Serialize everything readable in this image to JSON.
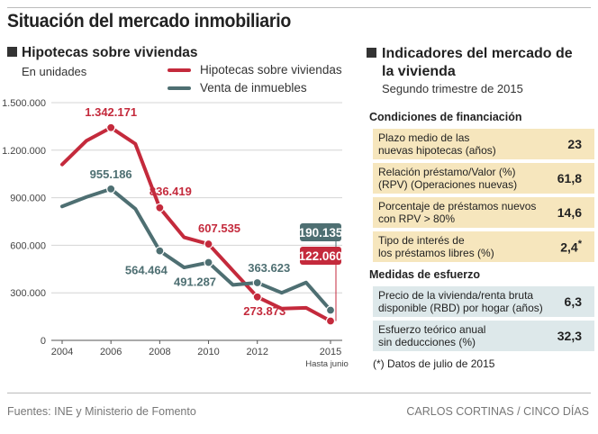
{
  "title": "Situación del mercado inmobiliario",
  "left_panel": {
    "heading": "Hipotecas sobre viviendas",
    "unit": "En unidades",
    "legend": [
      {
        "label": "Hipotecas sobre viviendas",
        "color": "#c42a3c"
      },
      {
        "label": "Venta de inmuebles",
        "color": "#4e6f72"
      }
    ]
  },
  "chart_data": {
    "type": "line",
    "x": [
      2004,
      2005,
      2006,
      2007,
      2008,
      2009,
      2010,
      2011,
      2012,
      2013,
      2014,
      2015
    ],
    "xticks": [
      "2004",
      "2006",
      "2008",
      "2010",
      "2012",
      "2015"
    ],
    "xtick_values": [
      2004,
      2006,
      2008,
      2010,
      2012,
      2015
    ],
    "xtick_sub": "Hasta junio",
    "yticks": [
      "0",
      "300.000",
      "600.000",
      "900.000",
      "1.200.000",
      "1.500.000"
    ],
    "ytick_values": [
      0,
      300000,
      600000,
      900000,
      1200000,
      1500000
    ],
    "ylim": [
      0,
      1500000
    ],
    "series": [
      {
        "name": "Hipotecas sobre viviendas",
        "color": "#c42a3c",
        "values": [
          1110000,
          1260000,
          1342171,
          1240000,
          836419,
          650000,
          607535,
          440000,
          273873,
          200000,
          205000,
          122060
        ]
      },
      {
        "name": "Venta de inmuebles",
        "color": "#4e6f72",
        "values": [
          845000,
          905000,
          955186,
          830000,
          564464,
          460000,
          491287,
          350000,
          363623,
          300000,
          365000,
          190135
        ]
      }
    ],
    "labels": [
      {
        "series": 0,
        "year": 2006,
        "text": "1.342.171"
      },
      {
        "series": 0,
        "year": 2008,
        "text": "836.419"
      },
      {
        "series": 0,
        "year": 2010,
        "text": "607.535"
      },
      {
        "series": 0,
        "year": 2012,
        "text": "273.873"
      },
      {
        "series": 1,
        "year": 2006,
        "text": "955.186"
      },
      {
        "series": 1,
        "year": 2008,
        "text": "564.464"
      },
      {
        "series": 1,
        "year": 2010,
        "text": "491.287"
      },
      {
        "series": 1,
        "year": 2012,
        "text": "363.623"
      }
    ],
    "boxes": [
      {
        "series": 1,
        "text": "190.135",
        "color": "#4e6f72"
      },
      {
        "series": 0,
        "text": "122.060",
        "color": "#c42a3c"
      }
    ]
  },
  "right_panel": {
    "heading_line1": "Indicadores del mercado de",
    "heading_line2": "la vivienda",
    "period": "Segundo trimestre de 2015",
    "financing_label": "Condiciones de financiación",
    "financing": [
      {
        "label_l1": "Plazo medio de las",
        "label_l2": "nuevas hipotecas (años)",
        "value": "23"
      },
      {
        "label_l1": "Relación préstamo/Valor (%)",
        "label_l2": "(RPV) (Operaciones nuevas)",
        "value": "61,8"
      },
      {
        "label_l1": "Porcentaje de préstamos nuevos",
        "label_l2": "con RPV > 80%",
        "value": "14,6"
      },
      {
        "label_l1": "Tipo de interés de",
        "label_l2": "los préstamos libres (%)",
        "value": "2,4",
        "mark": "*"
      }
    ],
    "effort_label": "Medidas de esfuerzo",
    "effort": [
      {
        "label_l1": "Precio de la vivienda/renta bruta",
        "label_l2": "disponible (RBD) por hogar (años)",
        "value": "6,3"
      },
      {
        "label_l1": "Esfuerzo teórico anual",
        "label_l2": "sin deducciones (%)",
        "value": "32,3"
      }
    ],
    "note": "(*) Datos de julio de 2015"
  },
  "footer": {
    "source": "Fuentes: INE y Ministerio de Fomento",
    "credit": "CARLOS CORTINAS / CINCO DÍAS"
  }
}
